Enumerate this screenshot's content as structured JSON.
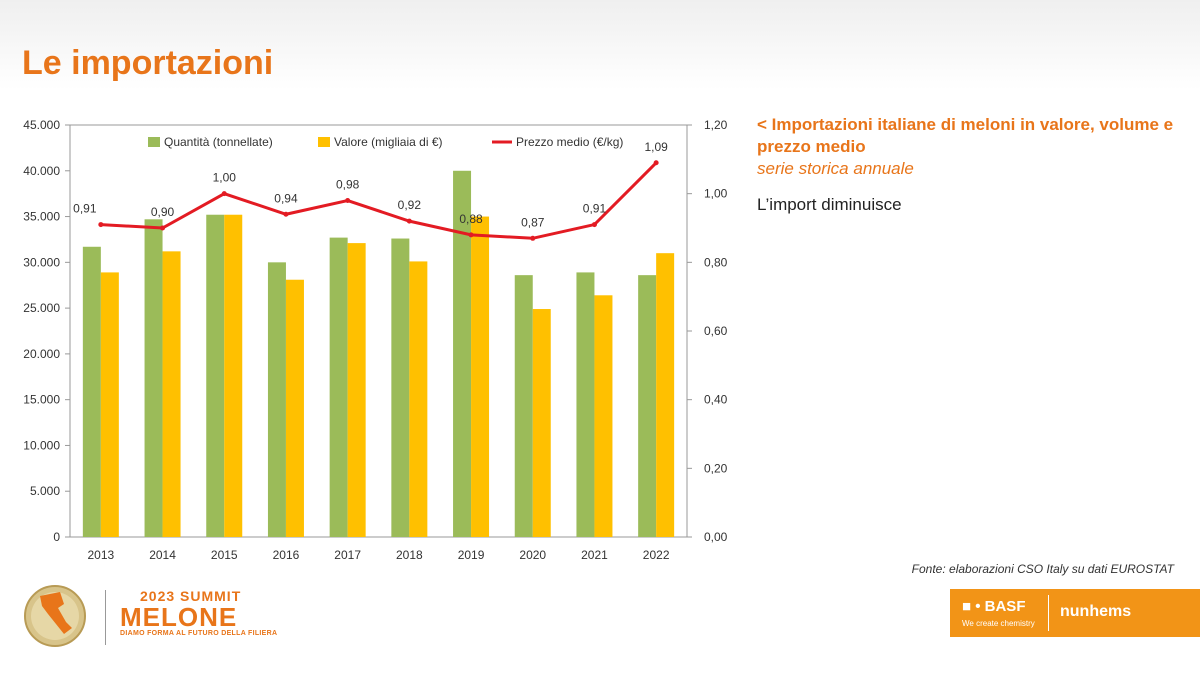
{
  "page": {
    "title": "Le importazioni"
  },
  "side_panel": {
    "heading": "< Importazioni italiane di meloni in valore, volume e prezzo medio",
    "subheading": "serie storica annuale",
    "note": "L’import diminuisce"
  },
  "source": "Fonte: elaborazioni CSO Italy su dati EUROSTAT",
  "footer": {
    "summit_line1": "2023 SUMMIT",
    "summit_line2": "MELONE",
    "summit_line3": "DIAMO FORMA AL FUTURO DELLA FILIERA",
    "basf": "■ • BASF",
    "basf_tagline": "We create chemistry",
    "nunhems": "nunhems"
  },
  "colors": {
    "title": "#E8751A",
    "quantity": "#9BBB59",
    "value": "#FFC000",
    "price": "#E31B23",
    "brand_box": "#F29417"
  },
  "chart_data": {
    "type": "bar",
    "categories": [
      "2013",
      "2014",
      "2015",
      "2016",
      "2017",
      "2018",
      "2019",
      "2020",
      "2021",
      "2022"
    ],
    "series": [
      {
        "name": "Quantità (tonnellate)",
        "type": "bar",
        "axis": "left",
        "color": "#9BBB59",
        "values": [
          31700,
          34700,
          35200,
          30000,
          32700,
          32600,
          40000,
          28600,
          28900,
          28600
        ]
      },
      {
        "name": "Valore (migliaia di €)",
        "type": "bar",
        "axis": "left",
        "color": "#FFC000",
        "values": [
          28900,
          31200,
          35200,
          28100,
          32100,
          30100,
          35000,
          24900,
          26400,
          31000
        ]
      },
      {
        "name": "Prezzo medio (€/kg)",
        "type": "line",
        "axis": "right",
        "color": "#E31B23",
        "values": [
          0.91,
          0.9,
          1.0,
          0.94,
          0.98,
          0.92,
          0.88,
          0.87,
          0.91,
          1.09
        ],
        "labels": [
          "0,91",
          "0,90",
          "1,00",
          "0,94",
          "0,98",
          "0,92",
          "0,88",
          "0,87",
          "0,91",
          "1,09"
        ]
      }
    ],
    "ylim_left": [
      0,
      45000
    ],
    "yticks_left": [
      "0",
      "5.000",
      "10.000",
      "15.000",
      "20.000",
      "25.000",
      "30.000",
      "35.000",
      "40.000",
      "45.000"
    ],
    "ylim_right": [
      0,
      1.2
    ],
    "yticks_right": [
      "0,00",
      "0,20",
      "0,40",
      "0,60",
      "0,80",
      "1,00",
      "1,20"
    ],
    "legend_position": "top",
    "grid": false
  }
}
